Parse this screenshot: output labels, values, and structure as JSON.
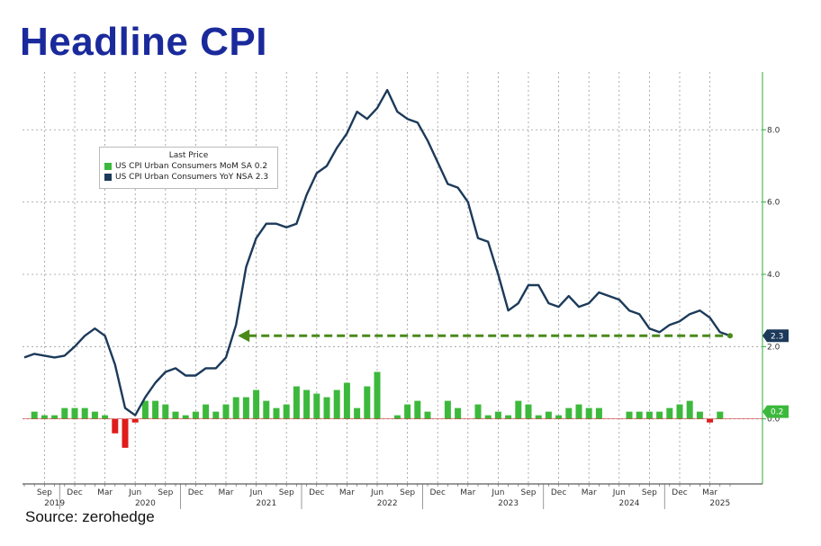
{
  "title": "Headline CPI",
  "source": "Source: zerohedge",
  "legend": {
    "header": "Last Price",
    "items": [
      {
        "label": "US CPI Urban Consumers MoM SA",
        "value": "0.2",
        "color": "#3cb93c"
      },
      {
        "label": "US CPI Urban Consumers YoY NSA",
        "value": "2.3",
        "color": "#1c3a5a"
      }
    ]
  },
  "chart_data": {
    "type": "line",
    "y_ticks": [
      "8.0",
      "6.0",
      "4.0",
      "2.0",
      "0.0"
    ],
    "ylim": [
      -1.8,
      9.6
    ],
    "x_ticks": [
      {
        "label": "Sep",
        "index": 2
      },
      {
        "label": "Dec",
        "index": 5
      },
      {
        "label": "Mar",
        "index": 8
      },
      {
        "label": "Jun",
        "index": 11
      },
      {
        "label": "Sep",
        "index": 14
      },
      {
        "label": "Dec",
        "index": 17
      },
      {
        "label": "Mar",
        "index": 20
      },
      {
        "label": "Jun",
        "index": 23
      },
      {
        "label": "Sep",
        "index": 26
      },
      {
        "label": "Dec",
        "index": 29
      },
      {
        "label": "Mar",
        "index": 32
      },
      {
        "label": "Jun",
        "index": 35
      },
      {
        "label": "Sep",
        "index": 38
      },
      {
        "label": "Dec",
        "index": 41
      },
      {
        "label": "Mar",
        "index": 44
      },
      {
        "label": "Jun",
        "index": 47
      },
      {
        "label": "Sep",
        "index": 50
      },
      {
        "label": "Dec",
        "index": 53
      },
      {
        "label": "Mar",
        "index": 56
      },
      {
        "label": "Jun",
        "index": 59
      },
      {
        "label": "Sep",
        "index": 62
      },
      {
        "label": "Dec",
        "index": 65
      },
      {
        "label": "Mar",
        "index": 68
      }
    ],
    "years": [
      {
        "label": "2019",
        "center": 3
      },
      {
        "label": "2020",
        "center": 12
      },
      {
        "label": "2021",
        "center": 24
      },
      {
        "label": "2022",
        "center": 36
      },
      {
        "label": "2023",
        "center": 48
      },
      {
        "label": "2024",
        "center": 60
      },
      {
        "label": "2025",
        "center": 69
      }
    ],
    "series": [
      {
        "name": "US CPI Urban Consumers YoY NSA",
        "color": "#1c3a5a",
        "values": [
          1.7,
          1.8,
          1.75,
          1.7,
          1.75,
          2.0,
          2.3,
          2.5,
          2.3,
          1.5,
          0.3,
          0.1,
          0.6,
          1.0,
          1.3,
          1.4,
          1.2,
          1.2,
          1.4,
          1.4,
          1.7,
          2.6,
          4.2,
          5.0,
          5.4,
          5.4,
          5.3,
          5.4,
          6.2,
          6.8,
          7.0,
          7.5,
          7.9,
          8.5,
          8.3,
          8.6,
          9.1,
          8.5,
          8.3,
          8.2,
          7.7,
          7.1,
          6.5,
          6.4,
          6.0,
          5.0,
          4.9,
          4.0,
          3.0,
          3.2,
          3.7,
          3.7,
          3.2,
          3.1,
          3.4,
          3.1,
          3.2,
          3.5,
          3.4,
          3.3,
          3.0,
          2.9,
          2.5,
          2.4,
          2.6,
          2.7,
          2.9,
          3.0,
          2.8,
          2.4,
          2.3
        ]
      },
      {
        "name": "US CPI Urban Consumers MoM SA",
        "color": "#3cb93c",
        "values": [
          0.0,
          0.2,
          0.1,
          0.1,
          0.3,
          0.3,
          0.3,
          0.2,
          0.1,
          -0.4,
          -0.8,
          -0.1,
          0.5,
          0.5,
          0.4,
          0.2,
          0.1,
          0.2,
          0.4,
          0.2,
          0.4,
          0.6,
          0.6,
          0.8,
          0.5,
          0.3,
          0.4,
          0.9,
          0.8,
          0.7,
          0.6,
          0.8,
          1.0,
          0.3,
          0.9,
          1.3,
          0.0,
          0.1,
          0.4,
          0.5,
          0.2,
          0.0,
          0.5,
          0.3,
          0.0,
          0.4,
          0.1,
          0.2,
          0.1,
          0.5,
          0.4,
          0.1,
          0.2,
          0.1,
          0.3,
          0.4,
          0.3,
          0.3,
          0.0,
          0.0,
          0.2,
          0.2,
          0.2,
          0.2,
          0.3,
          0.4,
          0.5,
          0.2,
          -0.1,
          0.2
        ]
      }
    ],
    "reference_level": 2.3,
    "last_labels": {
      "yoy": "2.3",
      "mom": "0.2"
    }
  }
}
